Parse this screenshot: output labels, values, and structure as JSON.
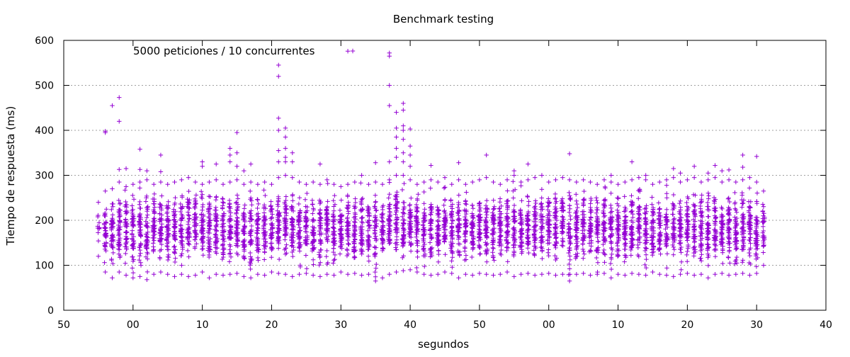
{
  "chart_data": {
    "type": "scatter",
    "title": "Benchmark testing",
    "xlabel": "segundos",
    "ylabel": "Tiempo de respuesta (ms)",
    "xlim": [
      0,
      110
    ],
    "ylim": [
      0,
      600
    ],
    "x_tick_labels": [
      "50",
      "00",
      "10",
      "20",
      "30",
      "40",
      "50",
      "00",
      "10",
      "20",
      "30",
      "40"
    ],
    "y_ticks": [
      0,
      100,
      200,
      300,
      400,
      500,
      600
    ],
    "y_tick_labels": [
      "0",
      "100",
      "200",
      "300",
      "400",
      "500",
      "600"
    ],
    "grid": {
      "y": true,
      "x": false
    },
    "legend_position": "top-left",
    "marker": "plus",
    "series": [
      {
        "name": "5000 peticiones / 10 concurrentes",
        "color": "#9400d3",
        "columns": [
          {
            "x": 5,
            "min": 120,
            "max": 240,
            "count": 10
          },
          {
            "x": 6,
            "min": 85,
            "max": 265,
            "count": 40,
            "extra": [
              395,
              398
            ]
          },
          {
            "x": 7,
            "min": 72,
            "max": 270,
            "count": 45,
            "extra": [
              455
            ]
          },
          {
            "x": 8,
            "min": 85,
            "max": 285,
            "count": 45,
            "extra": [
              313,
              420,
              473
            ]
          },
          {
            "x": 9,
            "min": 78,
            "max": 275,
            "count": 45,
            "extra": [
              315
            ]
          },
          {
            "x": 10,
            "min": 72,
            "max": 280,
            "count": 45
          },
          {
            "x": 11,
            "min": 75,
            "max": 285,
            "count": 45,
            "extra": [
              313,
              358
            ]
          },
          {
            "x": 12,
            "min": 68,
            "max": 290,
            "count": 45,
            "extra": [
              310
            ]
          },
          {
            "x": 13,
            "min": 80,
            "max": 280,
            "count": 45
          },
          {
            "x": 14,
            "min": 85,
            "max": 285,
            "count": 45,
            "extra": [
              308,
              345
            ]
          },
          {
            "x": 15,
            "min": 80,
            "max": 280,
            "count": 45
          },
          {
            "x": 16,
            "min": 75,
            "max": 285,
            "count": 45
          },
          {
            "x": 17,
            "min": 80,
            "max": 290,
            "count": 45
          },
          {
            "x": 18,
            "min": 75,
            "max": 295,
            "count": 45
          },
          {
            "x": 19,
            "min": 78,
            "max": 285,
            "count": 45
          },
          {
            "x": 20,
            "min": 85,
            "max": 280,
            "count": 45,
            "extra": [
              320,
              330
            ]
          },
          {
            "x": 21,
            "min": 72,
            "max": 285,
            "count": 45
          },
          {
            "x": 22,
            "min": 80,
            "max": 290,
            "count": 45,
            "extra": [
              325
            ]
          },
          {
            "x": 23,
            "min": 78,
            "max": 280,
            "count": 45
          },
          {
            "x": 24,
            "min": 80,
            "max": 285,
            "count": 45,
            "extra": [
              330,
              345,
              360
            ]
          },
          {
            "x": 25,
            "min": 82,
            "max": 290,
            "count": 45,
            "extra": [
              320,
              350,
              395
            ]
          },
          {
            "x": 26,
            "min": 75,
            "max": 280,
            "count": 45,
            "extra": [
              310
            ]
          },
          {
            "x": 27,
            "min": 72,
            "max": 285,
            "count": 45,
            "extra": [
              325
            ]
          },
          {
            "x": 28,
            "min": 80,
            "max": 280,
            "count": 45
          },
          {
            "x": 29,
            "min": 78,
            "max": 285,
            "count": 45
          },
          {
            "x": 30,
            "min": 85,
            "max": 280,
            "count": 45
          },
          {
            "x": 31,
            "min": 82,
            "max": 295,
            "count": 45,
            "extra": [
              330,
              355,
              400,
              427,
              520,
              545
            ]
          },
          {
            "x": 32,
            "min": 80,
            "max": 300,
            "count": 45,
            "extra": [
              330,
              340,
              360,
              385,
              405
            ]
          },
          {
            "x": 33,
            "min": 75,
            "max": 295,
            "count": 45,
            "extra": [
              330,
              350
            ]
          },
          {
            "x": 34,
            "min": 80,
            "max": 285,
            "count": 45
          },
          {
            "x": 35,
            "min": 82,
            "max": 280,
            "count": 45
          },
          {
            "x": 36,
            "min": 78,
            "max": 285,
            "count": 45
          },
          {
            "x": 37,
            "min": 75,
            "max": 280,
            "count": 45,
            "extra": [
              325
            ]
          },
          {
            "x": 38,
            "min": 80,
            "max": 290,
            "count": 45
          },
          {
            "x": 39,
            "min": 78,
            "max": 280,
            "count": 45
          },
          {
            "x": 40,
            "min": 85,
            "max": 275,
            "count": 45
          },
          {
            "x": 41,
            "min": 80,
            "max": 280,
            "count": 45,
            "extra": [
              576
            ]
          },
          {
            "x": 42,
            "min": 82,
            "max": 285,
            "count": 45
          },
          {
            "x": 43,
            "min": 78,
            "max": 300,
            "count": 45
          },
          {
            "x": 44,
            "min": 80,
            "max": 280,
            "count": 45
          },
          {
            "x": 45,
            "min": 65,
            "max": 285,
            "count": 45,
            "extra": [
              328
            ]
          },
          {
            "x": 46,
            "min": 72,
            "max": 280,
            "count": 45
          },
          {
            "x": 47,
            "min": 80,
            "max": 290,
            "count": 45,
            "extra": [
              330,
              455,
              500,
              565,
              572
            ]
          },
          {
            "x": 48,
            "min": 85,
            "max": 300,
            "count": 45,
            "extra": [
              340,
              360,
              385,
              405,
              440
            ]
          },
          {
            "x": 49,
            "min": 88,
            "max": 300,
            "count": 45,
            "extra": [
              330,
              350,
              380,
              400,
              410,
              445,
              460
            ]
          },
          {
            "x": 50,
            "min": 90,
            "max": 290,
            "count": 45,
            "extra": [
              320,
              345,
              365,
              403
            ]
          },
          {
            "x": 51,
            "min": 85,
            "max": 280,
            "count": 45
          },
          {
            "x": 52,
            "min": 80,
            "max": 285,
            "count": 45
          },
          {
            "x": 53,
            "min": 78,
            "max": 290,
            "count": 45,
            "extra": [
              322
            ]
          },
          {
            "x": 54,
            "min": 80,
            "max": 285,
            "count": 45
          },
          {
            "x": 55,
            "min": 85,
            "max": 295,
            "count": 45
          },
          {
            "x": 56,
            "min": 82,
            "max": 280,
            "count": 45
          },
          {
            "x": 57,
            "min": 72,
            "max": 290,
            "count": 45,
            "extra": [
              328
            ]
          },
          {
            "x": 58,
            "min": 80,
            "max": 280,
            "count": 45
          },
          {
            "x": 59,
            "min": 78,
            "max": 285,
            "count": 45
          },
          {
            "x": 60,
            "min": 82,
            "max": 290,
            "count": 45
          },
          {
            "x": 61,
            "min": 80,
            "max": 295,
            "count": 45,
            "extra": [
              345
            ]
          },
          {
            "x": 62,
            "min": 78,
            "max": 285,
            "count": 45
          },
          {
            "x": 63,
            "min": 80,
            "max": 280,
            "count": 45
          },
          {
            "x": 64,
            "min": 85,
            "max": 290,
            "count": 45
          },
          {
            "x": 65,
            "min": 75,
            "max": 300,
            "count": 45,
            "extra": [
              310
            ]
          },
          {
            "x": 66,
            "min": 80,
            "max": 285,
            "count": 45
          },
          {
            "x": 67,
            "min": 82,
            "max": 290,
            "count": 45,
            "extra": [
              325
            ]
          },
          {
            "x": 68,
            "min": 78,
            "max": 295,
            "count": 45
          },
          {
            "x": 69,
            "min": 80,
            "max": 300,
            "count": 45
          },
          {
            "x": 70,
            "min": 82,
            "max": 285,
            "count": 45
          },
          {
            "x": 71,
            "min": 78,
            "max": 290,
            "count": 45
          },
          {
            "x": 72,
            "min": 80,
            "max": 295,
            "count": 45
          },
          {
            "x": 73,
            "min": 65,
            "max": 290,
            "count": 45,
            "extra": [
              348
            ]
          },
          {
            "x": 74,
            "min": 80,
            "max": 285,
            "count": 45
          },
          {
            "x": 75,
            "min": 82,
            "max": 290,
            "count": 45
          },
          {
            "x": 76,
            "min": 78,
            "max": 285,
            "count": 45
          },
          {
            "x": 77,
            "min": 80,
            "max": 280,
            "count": 45
          },
          {
            "x": 78,
            "min": 82,
            "max": 290,
            "count": 45
          },
          {
            "x": 79,
            "min": 72,
            "max": 285,
            "count": 45,
            "extra": [
              300
            ]
          },
          {
            "x": 80,
            "min": 80,
            "max": 280,
            "count": 45
          },
          {
            "x": 81,
            "min": 78,
            "max": 285,
            "count": 45
          },
          {
            "x": 82,
            "min": 82,
            "max": 290,
            "count": 45,
            "extra": [
              330
            ]
          },
          {
            "x": 83,
            "min": 80,
            "max": 295,
            "count": 45
          },
          {
            "x": 84,
            "min": 78,
            "max": 290,
            "count": 45,
            "extra": [
              300
            ]
          },
          {
            "x": 85,
            "min": 85,
            "max": 280,
            "count": 45
          },
          {
            "x": 86,
            "min": 80,
            "max": 285,
            "count": 45
          },
          {
            "x": 87,
            "min": 78,
            "max": 290,
            "count": 45
          },
          {
            "x": 88,
            "min": 75,
            "max": 295,
            "count": 45,
            "extra": [
              315
            ]
          },
          {
            "x": 89,
            "min": 80,
            "max": 285,
            "count": 45,
            "extra": [
              305
            ]
          },
          {
            "x": 90,
            "min": 82,
            "max": 290,
            "count": 45
          },
          {
            "x": 91,
            "min": 78,
            "max": 295,
            "count": 45,
            "extra": [
              320
            ]
          },
          {
            "x": 92,
            "min": 80,
            "max": 285,
            "count": 45
          },
          {
            "x": 93,
            "min": 72,
            "max": 290,
            "count": 45,
            "extra": [
              305
            ]
          },
          {
            "x": 94,
            "min": 80,
            "max": 295,
            "count": 45,
            "extra": [
              322
            ]
          },
          {
            "x": 95,
            "min": 82,
            "max": 285,
            "count": 45,
            "extra": [
              310
            ]
          },
          {
            "x": 96,
            "min": 78,
            "max": 290,
            "count": 45,
            "extra": [
              312
            ]
          },
          {
            "x": 97,
            "min": 80,
            "max": 285,
            "count": 45
          },
          {
            "x": 98,
            "min": 82,
            "max": 290,
            "count": 45,
            "extra": [
              318,
              345
            ]
          },
          {
            "x": 99,
            "min": 78,
            "max": 295,
            "count": 45
          },
          {
            "x": 100,
            "min": 82,
            "max": 285,
            "count": 45,
            "extra": [
              342
            ]
          },
          {
            "x": 101,
            "min": 100,
            "max": 265,
            "count": 30
          }
        ]
      }
    ]
  }
}
